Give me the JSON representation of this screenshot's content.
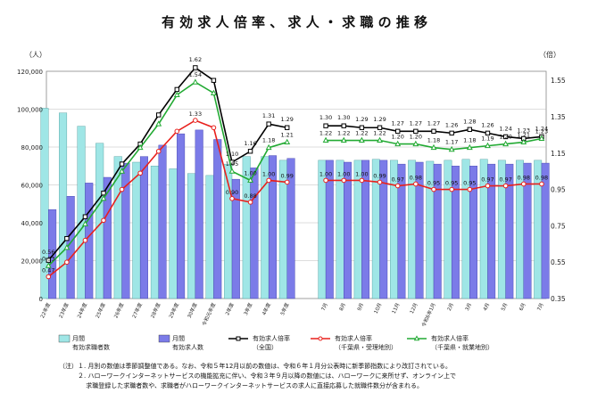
{
  "chart_data": {
    "type": "bar",
    "title": "有 効 求 人 倍 率 、 求 人 ・ 求 職 の 推 移",
    "y_left_unit": "（人）",
    "y_right_unit": "（倍）",
    "y_left_ticks": [
      "0",
      "20,000",
      "40,000",
      "60,000",
      "80,000",
      "100,000",
      "120,000"
    ],
    "y_right_ticks": [
      "0.35",
      "0.55",
      "0.75",
      "0.95",
      "1.15",
      "1.35",
      "1.55"
    ],
    "ylim_left": [
      0,
      120000
    ],
    "ylim_right": [
      0.35,
      1.6
    ],
    "grid": true,
    "categories_annual": [
      "22年度",
      "23年度",
      "24年度",
      "25年度",
      "26年度",
      "27年度",
      "28年度",
      "29年度",
      "30年度",
      "令和元年度",
      "2年度",
      "3年度",
      "4年度",
      "5年度"
    ],
    "categories_monthly": [
      "7月",
      "8月",
      "9月",
      "10月",
      "11月",
      "12月",
      "令和6年1月",
      "2月",
      "3月",
      "4月",
      "5月",
      "6月",
      "7月"
    ],
    "series": [
      {
        "name": "月間有効求職者数",
        "axis": "left",
        "annual": [
          100500,
          98000,
          91000,
          82000,
          75000,
          72000,
          70000,
          68500,
          66000,
          65000,
          71000,
          75000,
          75000,
          73000
        ],
        "monthly": [
          73000,
          73000,
          73000,
          73500,
          73000,
          73000,
          72500,
          73000,
          73500,
          73500,
          73000,
          73000,
          73000
        ]
      },
      {
        "name": "月間有効求人数",
        "axis": "left",
        "annual": [
          47000,
          54000,
          61000,
          64000,
          71500,
          75000,
          81000,
          87000,
          89000,
          84000,
          63000,
          69000,
          75500,
          74000
        ],
        "monthly": [
          73000,
          72000,
          73000,
          73000,
          71000,
          72000,
          71000,
          70000,
          70000,
          71000,
          71000,
          71500,
          71500
        ]
      },
      {
        "name": "有効求人倍率（全国）",
        "axis": "right",
        "annual": [
          0.56,
          0.68,
          0.8,
          0.93,
          1.09,
          1.2,
          1.36,
          1.5,
          1.62,
          1.55,
          1.1,
          1.16,
          1.31,
          1.29
        ],
        "monthly": [
          1.3,
          1.3,
          1.29,
          1.29,
          1.27,
          1.27,
          1.27,
          1.26,
          1.28,
          1.26,
          1.24,
          1.23,
          1.24
        ],
        "labels_annual": [
          "0.56",
          "",
          "",
          "",
          "",
          "",
          "",
          "",
          "1.62",
          "",
          "1.10",
          "1.16",
          "1.31",
          "1.29"
        ],
        "labels_monthly": [
          "1.30",
          "1.30",
          "1.29",
          "1.29",
          "1.27",
          "1.27",
          "1.27",
          "1.26",
          "1.28",
          "1.26",
          "1.24",
          "1.23",
          "1.24"
        ]
      },
      {
        "name": "有効求人倍率（千葉県・受理地別）",
        "axis": "right",
        "annual": [
          0.47,
          0.55,
          0.67,
          0.78,
          0.95,
          1.04,
          1.16,
          1.27,
          1.33,
          1.29,
          0.9,
          0.88,
          1.0,
          0.99
        ],
        "monthly": [
          1.0,
          1.0,
          1.0,
          0.99,
          0.97,
          0.98,
          0.95,
          0.95,
          0.95,
          0.97,
          0.97,
          0.98,
          0.98
        ],
        "labels_annual": [
          "0.47",
          "",
          "",
          "",
          "",
          "",
          "",
          "",
          "1.33",
          "",
          "0.90",
          "0.88",
          "1.00",
          "0.99"
        ],
        "labels_monthly": [
          "1.00",
          "1.00",
          "1.00",
          "0.99",
          "0.97",
          "0.98",
          "0.95",
          "0.95",
          "0.95",
          "0.97",
          "0.97",
          "0.98",
          "0.98"
        ]
      },
      {
        "name": "有効求人倍率（千葉県・就業地別）",
        "axis": "right",
        "annual": [
          0.53,
          0.63,
          0.76,
          0.9,
          1.05,
          1.18,
          1.31,
          1.47,
          1.54,
          1.48,
          1.05,
          1.0,
          1.18,
          1.21
        ],
        "monthly": [
          1.22,
          1.22,
          1.22,
          1.22,
          1.2,
          1.2,
          1.18,
          1.17,
          1.18,
          1.19,
          1.2,
          1.21,
          1.23
        ],
        "labels_annual": [
          "0.53",
          "",
          "",
          "",
          "",
          "",
          "",
          "",
          "1.54",
          "",
          "1.05",
          "1.00",
          "1.18",
          "1.21"
        ],
        "labels_monthly": [
          "1.22",
          "1.22",
          "1.22",
          "1.22",
          "1.20",
          "1.20",
          "1.18",
          "1.17",
          "1.18",
          "1.19",
          "1.20",
          "1.21",
          "1.23"
        ]
      }
    ],
    "legend": [
      {
        "label": "月間\n有効求職者数",
        "kind": "bar",
        "color": "#9fe6e6"
      },
      {
        "label": "月間\n有効求人数",
        "kind": "bar",
        "color": "#7b7be8"
      },
      {
        "label": "有効求人倍率\n（全国）",
        "kind": "line",
        "color": "#000000",
        "marker": "square"
      },
      {
        "label": "有効求人倍率\n（千葉県・受理地別）",
        "kind": "line",
        "color": "#e8201c",
        "marker": "circle"
      },
      {
        "label": "有効求人倍率\n（千葉県・就業地別）",
        "kind": "line",
        "color": "#22aa33",
        "marker": "triangle"
      }
    ],
    "colors": {
      "job_seekers": "#9fe6e6",
      "job_openings": "#7b7be8",
      "national": "#000000",
      "chiba_accepted": "#e8201c",
      "chiba_workplace": "#22aa33"
    }
  },
  "notes": [
    "（注）１. 月別の数値は季節調整値である。なお、令和５年12月以前の数値は、令和６年１月分公表時に新季節指数により改訂されている。",
    "　　　２. ハローワークインターネットサービスの機能拡充に伴い、令和３年９月以降の数値には、ハローワークに来所せず、オンライン上で",
    "　　　　 求職登録した求職者数や、求職者がハローワークインターネットサービスの求人に直接応募した就職件数分が含まれる。"
  ]
}
